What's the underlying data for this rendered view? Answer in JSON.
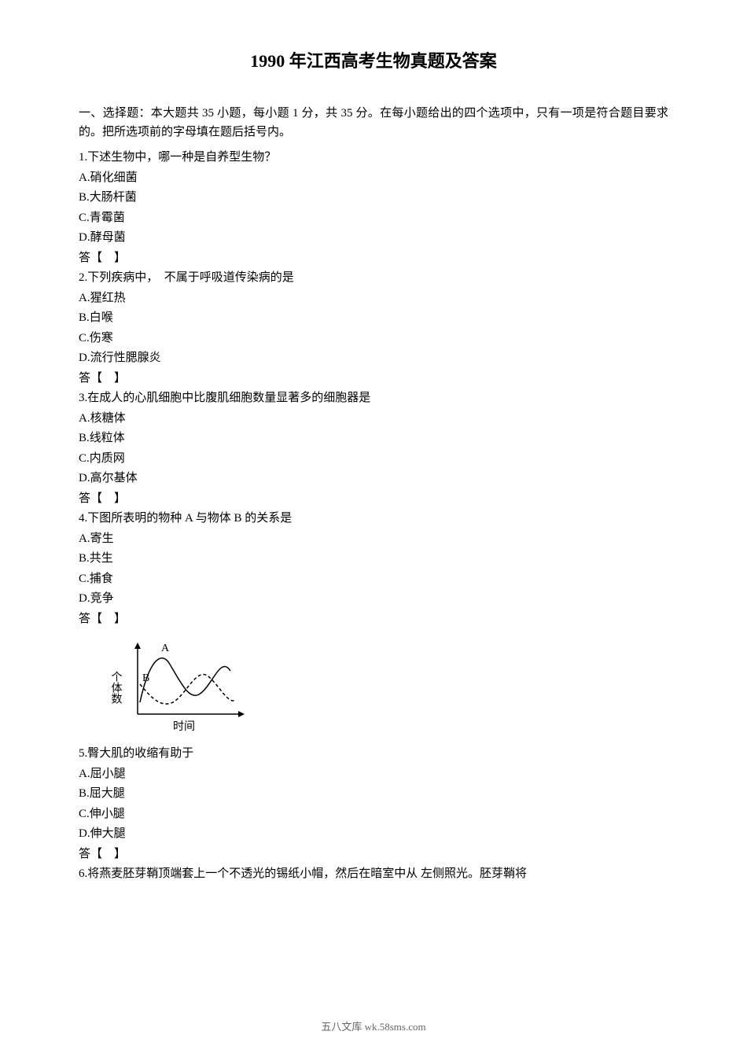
{
  "title": "1990 年江西高考生物真题及答案",
  "instructions": "一、选择题：本大题共 35 小题，每小题 1 分，共 35 分。在每小题给出的四个选项中，只有一项是符合题目要求的。把所选项前的字母填在题后括号内。",
  "questions": [
    {
      "num": "1",
      "text": "下述生物中，哪一种是自养型生物？",
      "options": [
        "A.硝化细菌",
        "B.大肠杆菌",
        "C.青霉菌",
        "D.酵母菌"
      ],
      "answer": "答【　】"
    },
    {
      "num": "2",
      "text": "下列疾病中，　不属于呼吸道传染病的是",
      "options": [
        "A.猩红热",
        "B.白喉",
        "C.伤寒",
        "D.流行性腮腺炎"
      ],
      "answer": "答【　】"
    },
    {
      "num": "3",
      "text": "在成人的心肌细胞中比腹肌细胞数量显著多的细胞器是",
      "options": [
        "A.核糖体",
        "B.线粒体",
        "C.内质网",
        "D.高尔基体"
      ],
      "answer": "答【　】"
    },
    {
      "num": "4",
      "text": "下图所表明的物种 A 与物体 B 的关系是",
      "options": [
        "A.寄生",
        "B.共生",
        "C.捕食",
        "D.竞争"
      ],
      "answer": "答【　】"
    },
    {
      "num": "5",
      "text": "臀大肌的收缩有助于",
      "options": [
        "A.屈小腿",
        "B.屈大腿",
        "C.伸小腿",
        "D.伸大腿"
      ],
      "answer": "答【　】"
    },
    {
      "num": "6",
      "text": "将燕麦胚芽鞘顶端套上一个不透光的锡纸小帽，然后在暗室中从 左侧照光。胚芽鞘将",
      "options": [],
      "answer": ""
    }
  ],
  "chart": {
    "y_label": "个体数",
    "x_label": "时间",
    "label_A": "A",
    "label_B": "B",
    "axis_color": "#000000",
    "line_A_color": "#000000",
    "line_B_color": "#000000",
    "width": 190,
    "height": 130,
    "font_size": 14
  },
  "footer": "五八文库 wk.58sms.com"
}
